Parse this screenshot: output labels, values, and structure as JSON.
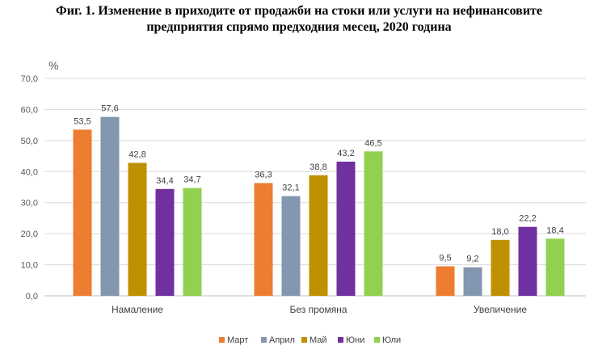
{
  "title_line1": "Фиг. 1. Изменение в приходите от продажби на стоки или услуги на нефинансовите",
  "title_line2": "предприятия спрямо предходния месец, 2020 година",
  "chart_data": {
    "type": "bar",
    "unit_label": "%",
    "categories": [
      "Намаление",
      "Без промяна",
      "Увеличение"
    ],
    "series": [
      {
        "name": "Март",
        "color": "#ED7D31",
        "values": [
          53.5,
          36.3,
          9.5
        ],
        "labels": [
          "53,5",
          "36,3",
          "9,5"
        ]
      },
      {
        "name": "Април",
        "color": "#8497B0",
        "values": [
          57.6,
          32.1,
          9.2
        ],
        "labels": [
          "57,6",
          "32,1",
          "9,2"
        ]
      },
      {
        "name": "Май",
        "color": "#BF9000",
        "values": [
          42.8,
          38.8,
          18.0
        ],
        "labels": [
          "42,8",
          "38,8",
          "18,0"
        ]
      },
      {
        "name": "Юни",
        "color": "#7030A0",
        "values": [
          34.4,
          43.2,
          22.2
        ],
        "labels": [
          "34,4",
          "43,2",
          "22,2"
        ]
      },
      {
        "name": "Юли",
        "color": "#92D050",
        "values": [
          34.7,
          46.5,
          18.4
        ],
        "labels": [
          "34,7",
          "46,5",
          "18,4"
        ]
      }
    ],
    "y_ticks": [
      0,
      10,
      20,
      30,
      40,
      50,
      60,
      70
    ],
    "y_tick_labels": [
      "0,0",
      "10,0",
      "20,0",
      "30,0",
      "40,0",
      "50,0",
      "60,0",
      "70,0"
    ],
    "ylim": [
      0,
      70
    ],
    "grid": true,
    "legend_position": "bottom"
  }
}
